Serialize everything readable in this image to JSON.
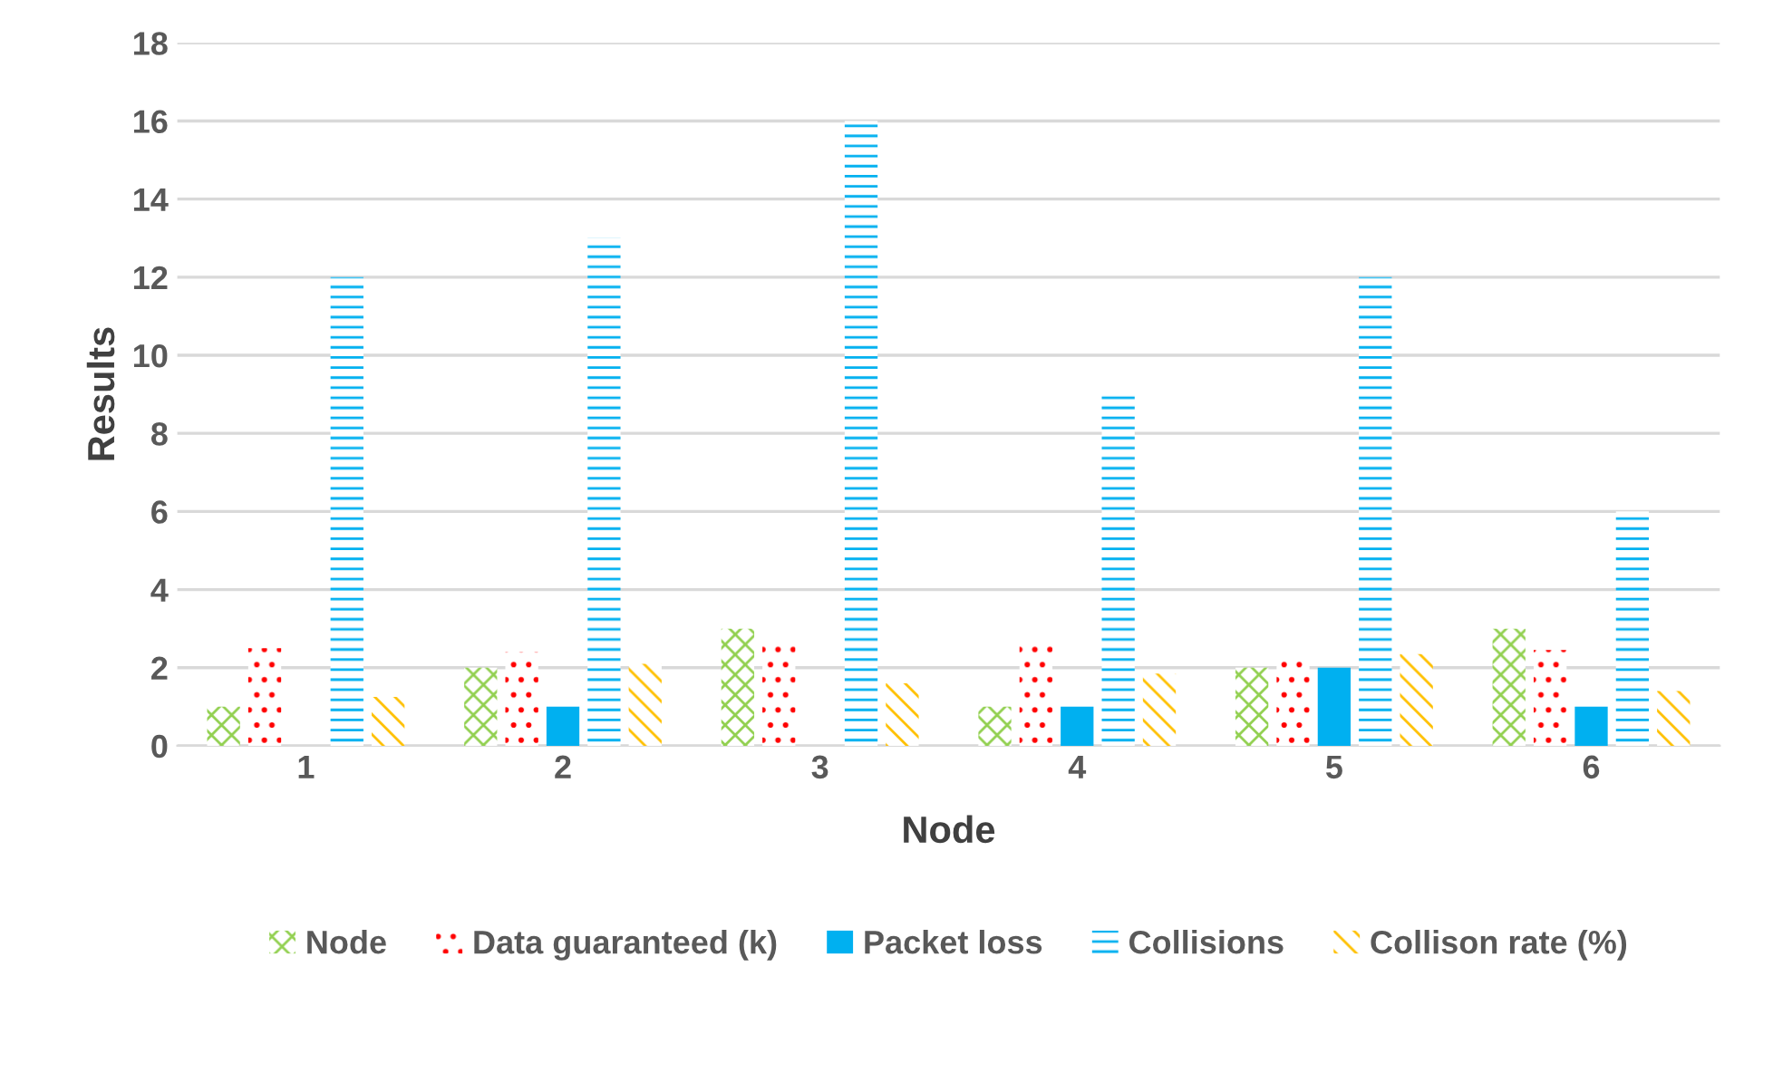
{
  "chart_data": {
    "type": "bar",
    "xlabel": "Node",
    "ylabel": "Results",
    "categories": [
      "1",
      "2",
      "3",
      "4",
      "5",
      "6"
    ],
    "series": [
      {
        "name": "Node",
        "color": "#92d050",
        "values": [
          1,
          2,
          3,
          1,
          2,
          3
        ]
      },
      {
        "name": "Data guaranteed (k)",
        "color": "#ff0000",
        "values": [
          2.5,
          2.4,
          2.65,
          2.6,
          2.3,
          2.45
        ]
      },
      {
        "name": "Packet loss",
        "color": "#00b0f0",
        "values": [
          0,
          1,
          0,
          1,
          2,
          1
        ]
      },
      {
        "name": "Collisions",
        "color": "#00b0f0",
        "values": [
          12,
          13,
          16,
          9,
          12,
          6
        ]
      },
      {
        "name": "Collison rate (%)",
        "color": "#ffc000",
        "values": [
          1.25,
          2.1,
          1.6,
          1.85,
          2.35,
          1.4
        ]
      }
    ],
    "ylim": [
      0,
      18
    ],
    "yticks": [
      0,
      2,
      4,
      6,
      8,
      10,
      12,
      14,
      16,
      18
    ],
    "grid": "y",
    "legend": "bottom"
  }
}
